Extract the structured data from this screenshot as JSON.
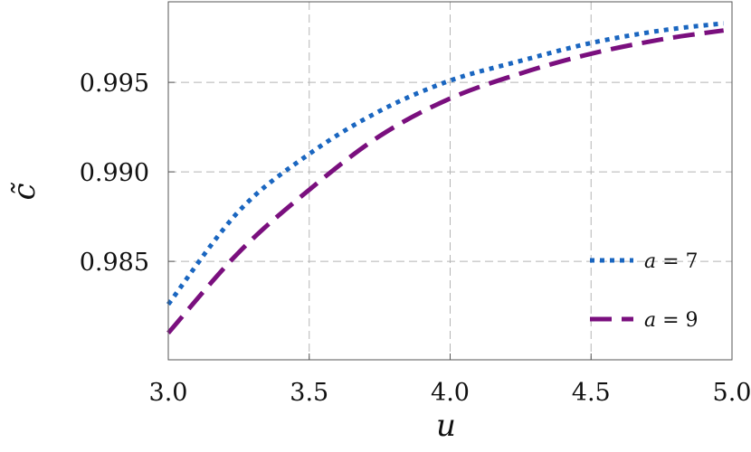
{
  "chart_data": {
    "type": "line",
    "xlabel": "u",
    "ylabel": "c̃",
    "xlim": [
      3.0,
      5.0
    ],
    "ylim": [
      0.9795,
      0.9995
    ],
    "x_ticks": [
      3.0,
      3.5,
      4.0,
      4.5,
      5.0
    ],
    "x_tick_labels": [
      "3.0",
      "3.5",
      "4.0",
      "4.5",
      "5.0"
    ],
    "y_ticks": [
      0.985,
      0.99,
      0.995
    ],
    "y_tick_labels": [
      "0.985",
      "0.990",
      "0.995"
    ],
    "grid": true,
    "legend_position": "bottom-right",
    "series": [
      {
        "name": "a = 7",
        "legend_var": "a",
        "legend_value": "= 7",
        "color": "#1a66c0",
        "style": "dotted",
        "x": [
          3.0,
          3.25,
          3.5,
          3.75,
          4.0,
          4.25,
          4.5,
          4.75,
          4.97
        ],
        "values": [
          0.9826,
          0.9878,
          0.991,
          0.9934,
          0.9951,
          0.9962,
          0.9972,
          0.9979,
          0.9983
        ]
      },
      {
        "name": "a = 9",
        "legend_var": "a",
        "legend_value": "= 9",
        "color": "#7a0f7e",
        "style": "dashed",
        "x": [
          3.0,
          3.25,
          3.5,
          3.75,
          4.0,
          4.25,
          4.5,
          4.75,
          4.97
        ],
        "values": [
          0.981,
          0.9855,
          0.989,
          0.992,
          0.9941,
          0.9955,
          0.9966,
          0.9974,
          0.9979
        ]
      }
    ]
  }
}
